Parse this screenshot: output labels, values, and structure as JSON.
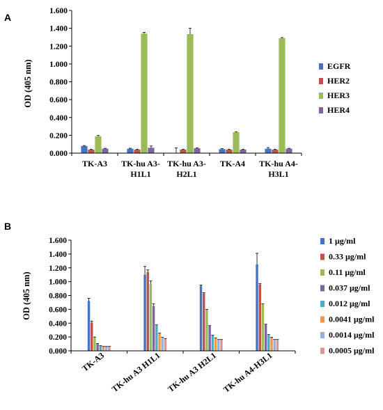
{
  "panels": [
    {
      "letter": "A",
      "chart_data": {
        "type": "bar",
        "ylabel": "OD (405 nm)",
        "ylim": [
          0,
          1.6
        ],
        "yticks": [
          "0.000",
          "0.200",
          "0.400",
          "0.600",
          "0.800",
          "1.000",
          "1.200",
          "1.400",
          "1.600"
        ],
        "categories": [
          [
            "TK-A3"
          ],
          [
            "TK-hu A3-",
            "H1L1"
          ],
          [
            "TK-hu A3-",
            "H2L1"
          ],
          [
            "TK-A4"
          ],
          [
            "TK-hu A4-",
            "H3L1"
          ]
        ],
        "legend_position": "right",
        "grid": false,
        "series": [
          {
            "name": "EGFR",
            "color": "#4472C4",
            "values": [
              0.08,
              0.05,
              0.0,
              0.045,
              0.05
            ],
            "errors": [
              0.005,
              0.005,
              0.06,
              0.005,
              0.012
            ]
          },
          {
            "name": "HER2",
            "color": "#C0504D",
            "values": [
              0.04,
              0.04,
              0.04,
              0.04,
              0.04
            ],
            "errors": [
              0.004,
              0.004,
              0.004,
              0.004,
              0.004
            ]
          },
          {
            "name": "HER3",
            "color": "#9BBB59",
            "values": [
              0.19,
              1.34,
              1.335,
              0.235,
              1.29
            ],
            "errors": [
              0.008,
              0.015,
              0.065,
              0.005,
              0.006
            ]
          },
          {
            "name": "HER4",
            "color": "#8064A2",
            "values": [
              0.05,
              0.06,
              0.055,
              0.04,
              0.05
            ],
            "errors": [
              0.004,
              0.02,
              0.005,
              0.004,
              0.004
            ]
          }
        ]
      }
    },
    {
      "letter": "B",
      "chart_data": {
        "type": "bar",
        "ylabel": "OD (405 nm)",
        "ylim": [
          0,
          1.6
        ],
        "yticks": [
          "0.000",
          "0.200",
          "0.400",
          "0.600",
          "0.800",
          "1.000",
          "1.200",
          "1.400",
          "1.600"
        ],
        "categories": [
          "TK-A3",
          "TK-hu A3 H1L1",
          "TK-hu A3 H2L1",
          "TK-hu A4-H3L1"
        ],
        "legend_position": "right",
        "grid": false,
        "series": [
          {
            "name": "1 μg/ml",
            "color": "#4472C4",
            "values": [
              0.72,
              1.1,
              0.94,
              1.25
            ],
            "errors": [
              0.04,
              0.12,
              0.01,
              0.16
            ]
          },
          {
            "name": "0.33 μg/ml",
            "color": "#C0504D",
            "values": [
              0.41,
              1.14,
              0.83,
              0.96
            ],
            "errors": [
              0.02,
              0.03,
              0.01,
              0.01
            ]
          },
          {
            "name": "0.11 μg/ml",
            "color": "#9BBB59",
            "values": [
              0.19,
              0.97,
              0.59,
              0.67
            ],
            "errors": [
              0.01,
              0.04,
              0.01,
              0.01
            ]
          },
          {
            "name": "0.037 μg/ml",
            "color": "#8064A2",
            "values": [
              0.1,
              0.65,
              0.36,
              0.38
            ],
            "errors": [
              0.005,
              0.03,
              0.005,
              0.005
            ]
          },
          {
            "name": "0.012 μg/ml",
            "color": "#4BACC6",
            "values": [
              0.07,
              0.37,
              0.22,
              0.23
            ],
            "errors": [
              0.004,
              0.005,
              0.005,
              0.005
            ]
          },
          {
            "name": "0.0041 μg/ml",
            "color": "#F79646",
            "values": [
              0.06,
              0.25,
              0.18,
              0.19
            ],
            "errors": [
              0.003,
              0.005,
              0.005,
              0.005
            ]
          },
          {
            "name": "0.0014 μg/ml",
            "color": "#95B3D7",
            "values": [
              0.06,
              0.19,
              0.16,
              0.16
            ],
            "errors": [
              0.003,
              0.005,
              0.004,
              0.004
            ]
          },
          {
            "name": "0.0005 μg/ml",
            "color": "#D99694",
            "values": [
              0.06,
              0.17,
              0.16,
              0.16
            ],
            "errors": [
              0.003,
              0.005,
              0.004,
              0.004
            ]
          }
        ]
      }
    }
  ]
}
